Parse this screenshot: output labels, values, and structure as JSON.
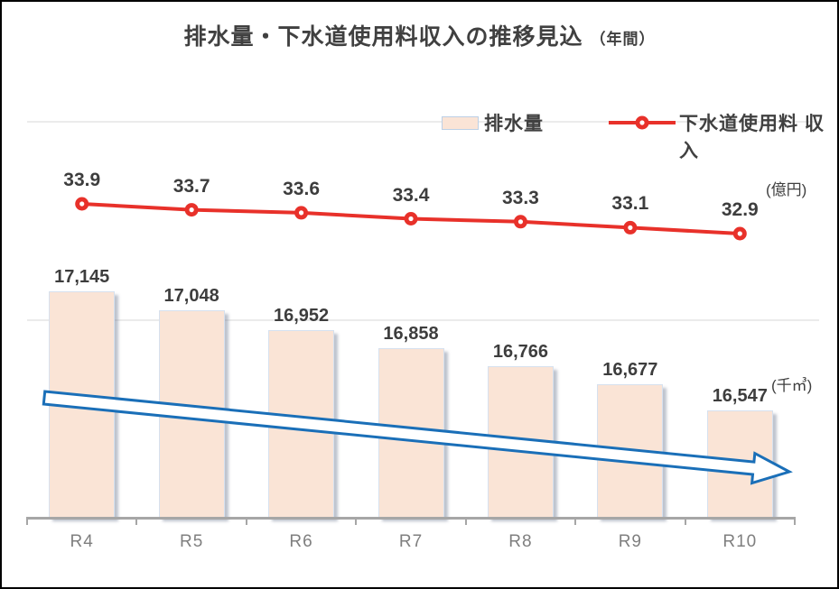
{
  "frame": {
    "background": "#ffffff",
    "border_color": "#000000"
  },
  "chart_data": {
    "type": "combo-bar-line",
    "title": "排水量・下水道使用料収入の推移見込",
    "title_suffix": "（年間）",
    "categories": [
      "R4",
      "R5",
      "R6",
      "R7",
      "R8",
      "R9",
      "R10"
    ],
    "series": [
      {
        "name": "排水量",
        "type": "bar",
        "unit_label": "(千㎥)",
        "color": "#fae4d6",
        "values": [
          17145,
          17048,
          16952,
          16858,
          16766,
          16677,
          16547
        ],
        "value_labels": [
          "17,145",
          "17,048",
          "16,952",
          "16,858",
          "16,766",
          "16,677",
          "16,547"
        ],
        "axis": {
          "min": 16000,
          "gridlines": [
            17000,
            18000
          ]
        }
      },
      {
        "name": "下水道使用料 収入",
        "type": "line",
        "unit_label": "(億円)",
        "color": "#e8312a",
        "marker": "circle-dot",
        "values": [
          33.9,
          33.7,
          33.6,
          33.4,
          33.3,
          33.1,
          32.9
        ],
        "value_labels": [
          "33.9",
          "33.7",
          "33.6",
          "33.4",
          "33.3",
          "33.1",
          "32.9"
        ]
      }
    ],
    "legend": {
      "position": "top",
      "items": [
        {
          "label": "排水量",
          "series": "bar"
        },
        {
          "label": "下水道使用料 収入",
          "series": "line"
        }
      ]
    },
    "annotations": [
      {
        "type": "trend-arrow",
        "direction": "down-right",
        "stroke_color": "#1a6fb8",
        "fill_color": "#ffffff"
      }
    ],
    "grid": true
  }
}
